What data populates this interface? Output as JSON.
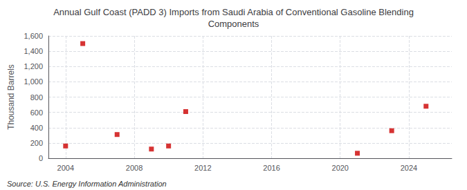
{
  "chart_data": {
    "type": "scatter",
    "title": "Annual Gulf Coast (PADD 3) Imports from Saudi Arabia of Conventional Gasoline Blending\nComponents",
    "y_label": "Thousand Barrels",
    "annotations": [
      "Source: U.S. Energy Information Administration"
    ],
    "x": [
      2004,
      2005,
      2007,
      2009,
      2010,
      2011,
      2021,
      2023,
      2025
    ],
    "values": [
      160,
      1500,
      310,
      120,
      160,
      610,
      65,
      360,
      680
    ],
    "color": "#cc0000",
    "marker": "square",
    "xlim": [
      2003.0,
      2026.5
    ],
    "xticks": [
      2004,
      2008,
      2012,
      2016,
      2020,
      2024
    ],
    "ylim": [
      0,
      1600
    ],
    "yticks": [
      0,
      200,
      400,
      600,
      800,
      {
        "value": 1000,
        "label": "1,000"
      },
      {
        "value": 1200,
        "label": "1,200"
      },
      {
        "value": 1400,
        "label": "1,400"
      },
      {
        "value": 1600,
        "label": "1,600"
      }
    ],
    "grid": true
  }
}
